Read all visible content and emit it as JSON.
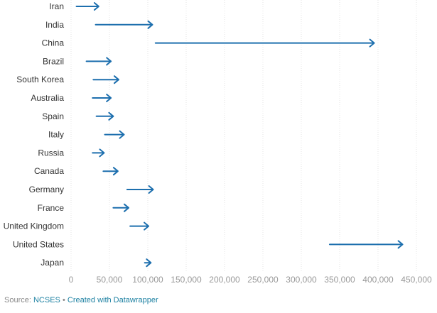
{
  "chart_data": {
    "type": "arrow",
    "categories": [
      "Iran",
      "India",
      "China",
      "Brazil",
      "South Korea",
      "Australia",
      "Spain",
      "Italy",
      "Russia",
      "Canada",
      "Germany",
      "France",
      "United Kingdom",
      "United States",
      "Japan"
    ],
    "series": [
      {
        "name": "start",
        "values": [
          7000,
          32000,
          110000,
          20000,
          29000,
          28000,
          33000,
          44000,
          28000,
          42000,
          73000,
          55000,
          77000,
          337000,
          96000
        ]
      },
      {
        "name": "end",
        "values": [
          36000,
          106000,
          395000,
          52000,
          62000,
          52000,
          55000,
          69000,
          43000,
          61000,
          107000,
          75000,
          101000,
          432000,
          104000
        ]
      }
    ],
    "xlim": [
      0,
      450000
    ],
    "x_ticks": [
      0,
      50000,
      100000,
      150000,
      200000,
      250000,
      300000,
      350000,
      400000,
      450000
    ],
    "x_tick_labels": [
      "0",
      "50,000",
      "100,000",
      "150,000",
      "200,000",
      "250,000",
      "300,000",
      "350,000",
      "400,000",
      "450,000"
    ],
    "grid": true,
    "color": "#1d6fae"
  },
  "footer": {
    "source_label": "Source:",
    "source_name": "NCSES",
    "separator": "•",
    "credit": "Created with Datawrapper"
  }
}
